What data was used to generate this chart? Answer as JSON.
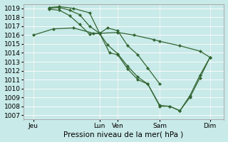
{
  "title": "",
  "xlabel": "Pression niveau de la mer( hPa )",
  "ylabel": "",
  "bg_color": "#c8eae8",
  "grid_color": "#ffffff",
  "line_color": "#336633",
  "ylim": [
    1006.5,
    1019.5
  ],
  "yticks": [
    1007,
    1008,
    1009,
    1010,
    1011,
    1012,
    1013,
    1014,
    1015,
    1016,
    1017,
    1018,
    1019
  ],
  "xtick_positions": [
    0.05,
    0.38,
    0.47,
    0.68,
    0.93
  ],
  "xtick_labels": [
    "Jeu",
    "Lun",
    "Ven",
    "Sam",
    "Dim"
  ],
  "vline_positions": [
    0.05,
    0.38,
    0.47,
    0.68,
    0.93
  ],
  "xlim": [
    0.0,
    1.0
  ],
  "series1_x": [
    0.05,
    0.15,
    0.25,
    0.35,
    0.38,
    0.47,
    0.55,
    0.65,
    0.68,
    0.78,
    0.88,
    0.93
  ],
  "series1_y": [
    1016.0,
    1016.7,
    1016.8,
    1016.2,
    1016.2,
    1016.3,
    1016.0,
    1015.5,
    1015.3,
    1014.8,
    1014.2,
    1013.5
  ],
  "series2_x": [
    0.13,
    0.18,
    0.25,
    0.33,
    0.38,
    0.42,
    0.47,
    0.52,
    0.57,
    0.62,
    0.68,
    0.73,
    0.78,
    0.83,
    0.88,
    0.93
  ],
  "series2_y": [
    1019.1,
    1019.2,
    1019.0,
    1018.5,
    1016.2,
    1016.8,
    1016.5,
    1014.8,
    1013.8,
    1012.3,
    1010.5,
    null,
    null,
    null,
    null,
    null
  ],
  "series3_x": [
    0.13,
    0.18,
    0.23,
    0.28,
    0.33,
    0.38,
    0.42,
    0.47,
    0.52,
    0.57,
    0.62,
    0.68,
    0.73,
    0.78,
    0.83,
    0.88,
    0.93
  ],
  "series3_y": [
    1019.0,
    1019.1,
    1018.8,
    1018.3,
    1017.0,
    1016.2,
    1014.9,
    1013.9,
    1012.5,
    1011.3,
    1010.5,
    1008.0,
    1008.0,
    1007.5,
    1009.0,
    1011.2,
    1013.5
  ],
  "series4_x": [
    0.13,
    0.18,
    0.23,
    0.28,
    0.33,
    0.38,
    0.43,
    0.47,
    0.52,
    0.57,
    0.62,
    0.68,
    0.73,
    0.78,
    0.83,
    0.88,
    0.93
  ],
  "series4_y": [
    1018.9,
    1018.8,
    1018.2,
    1017.2,
    1016.1,
    1016.2,
    1014.0,
    1013.8,
    1012.2,
    1011.0,
    1010.5,
    1008.1,
    1008.0,
    1007.5,
    1009.2,
    1011.5,
    1013.5
  ]
}
